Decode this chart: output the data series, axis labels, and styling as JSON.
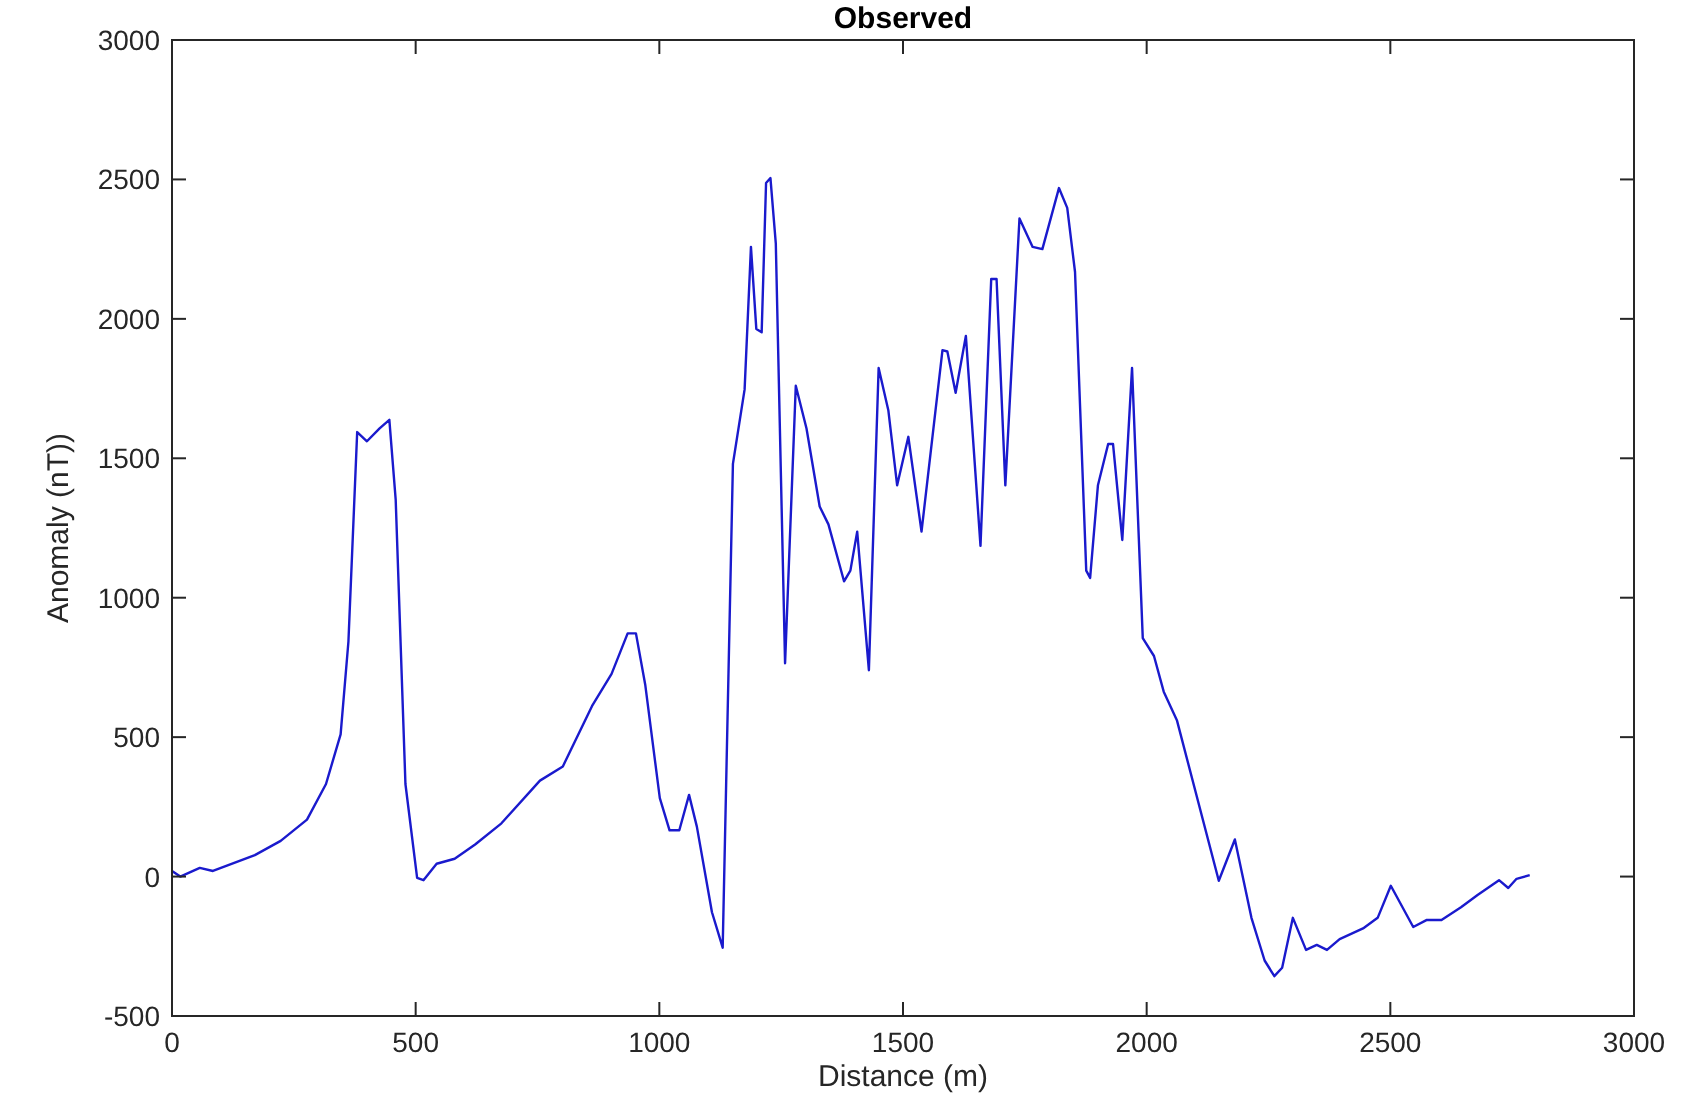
{
  "chart_data": {
    "type": "line",
    "title": "Observed",
    "xlabel": "Distance (m)",
    "ylabel": "Anomaly (nT))",
    "xlim": [
      0,
      3000
    ],
    "xticks": [
      0,
      500,
      1000,
      1500,
      2000,
      2500,
      3000
    ],
    "ylim": [
      -500,
      3000
    ],
    "yticks": [
      -500,
      0,
      500,
      1000,
      1500,
      2000,
      2500,
      3000
    ],
    "grid": false,
    "series": [
      {
        "color": "#1a1acd",
        "x": [
          0,
          17,
          57,
          84,
          170,
          223,
          277,
          316,
          346,
          362,
          380,
          400,
          426,
          446,
          459,
          479,
          503,
          516,
          543,
          580,
          622,
          676,
          755,
          802,
          862,
          902,
          935,
          952,
          971,
          1001,
          1021,
          1041,
          1061,
          1077,
          1108,
          1130,
          1151,
          1175,
          1188,
          1199,
          1210,
          1219,
          1228,
          1239,
          1258,
          1280,
          1302,
          1329,
          1347,
          1379,
          1392,
          1406,
          1430,
          1450,
          1470,
          1488,
          1511,
          1538,
          1581,
          1591,
          1608,
          1629,
          1659,
          1681,
          1692,
          1710,
          1739,
          1766,
          1786,
          1820,
          1837,
          1853,
          1876,
          1884,
          1900,
          1921,
          1931,
          1950,
          1970,
          1992,
          2015,
          2035,
          2062,
          2148,
          2181,
          2215,
          2242,
          2262,
          2278,
          2300,
          2327,
          2349,
          2370,
          2396,
          2444,
          2474,
          2501,
          2547,
          2574,
          2605,
          2645,
          2679,
          2723,
          2742,
          2759,
          2786
        ],
        "values": [
          20,
          0,
          31,
          20,
          77,
          128,
          204,
          332,
          510,
          842,
          1594,
          1561,
          1607,
          1638,
          1352,
          332,
          -5,
          -13,
          46,
          64,
          115,
          191,
          344,
          395,
          612,
          727,
          872,
          872,
          689,
          281,
          166,
          166,
          293,
          179,
          -128,
          -255,
          1480,
          1747,
          2258,
          1964,
          1952,
          2487,
          2505,
          2270,
          765,
          1760,
          1607,
          1327,
          1263,
          1059,
          1097,
          1237,
          740,
          1824,
          1671,
          1403,
          1577,
          1237,
          1888,
          1883,
          1735,
          1939,
          1186,
          2143,
          2143,
          1403,
          2360,
          2258,
          2250,
          2469,
          2398,
          2168,
          1097,
          1071,
          1403,
          1551,
          1551,
          1207,
          1824,
          855,
          791,
          663,
          561,
          -15,
          133,
          -148,
          -301,
          -357,
          -327,
          -148,
          -263,
          -245,
          -263,
          -224,
          -186,
          -148,
          -33,
          -181,
          -156,
          -156,
          -110,
          -66,
          -13,
          -41,
          -8,
          5
        ]
      }
    ]
  }
}
